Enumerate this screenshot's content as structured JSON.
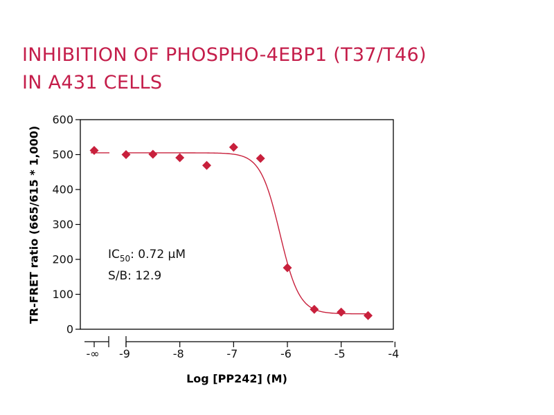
{
  "chart_data": {
    "type": "scatter",
    "title_line1": "INHIBITION OF PHOSPHO-4EBP1 (T37/T46)",
    "title_line2": "IN A431 CELLS",
    "xlabel": "Log [PP242] (M)",
    "ylabel": "TR-FRET ratio (665/615 * 1,000)",
    "xlim": [
      -4,
      -9
    ],
    "ylim": [
      0,
      600
    ],
    "x_ticks": [
      {
        "value": "-inf",
        "label": "-∞"
      },
      {
        "value": -9,
        "label": "-9"
      },
      {
        "value": -8,
        "label": "-8"
      },
      {
        "value": -7,
        "label": "-7"
      },
      {
        "value": -6,
        "label": "-6"
      },
      {
        "value": -5,
        "label": "-5"
      },
      {
        "value": -4,
        "label": "-4"
      }
    ],
    "y_ticks": [
      0,
      100,
      200,
      300,
      400,
      500,
      600
    ],
    "axis_break": "between -∞ and -9",
    "series": [
      {
        "name": "PP242",
        "color": "#c8203c",
        "marker": "diamond",
        "points": [
          {
            "x": "-inf",
            "y": 512
          },
          {
            "x": -9.0,
            "y": 500
          },
          {
            "x": -8.5,
            "y": 501
          },
          {
            "x": -8.0,
            "y": 491
          },
          {
            "x": -7.5,
            "y": 469
          },
          {
            "x": -7.0,
            "y": 521
          },
          {
            "x": -6.5,
            "y": 489
          },
          {
            "x": -6.0,
            "y": 176
          },
          {
            "x": -5.5,
            "y": 57
          },
          {
            "x": -5.0,
            "y": 49
          },
          {
            "x": -4.5,
            "y": 39
          }
        ]
      }
    ],
    "fit": {
      "model": "four-parameter logistic",
      "top": 505,
      "bottom": 44,
      "log_ic50": -6.14,
      "hill_slope": 2.4,
      "color": "#c8203c"
    },
    "annotations": {
      "ic50_label": "IC",
      "ic50_subscript": "50",
      "ic50_value": ": 0.72 µM",
      "sb": "S/B: 12.9"
    }
  }
}
